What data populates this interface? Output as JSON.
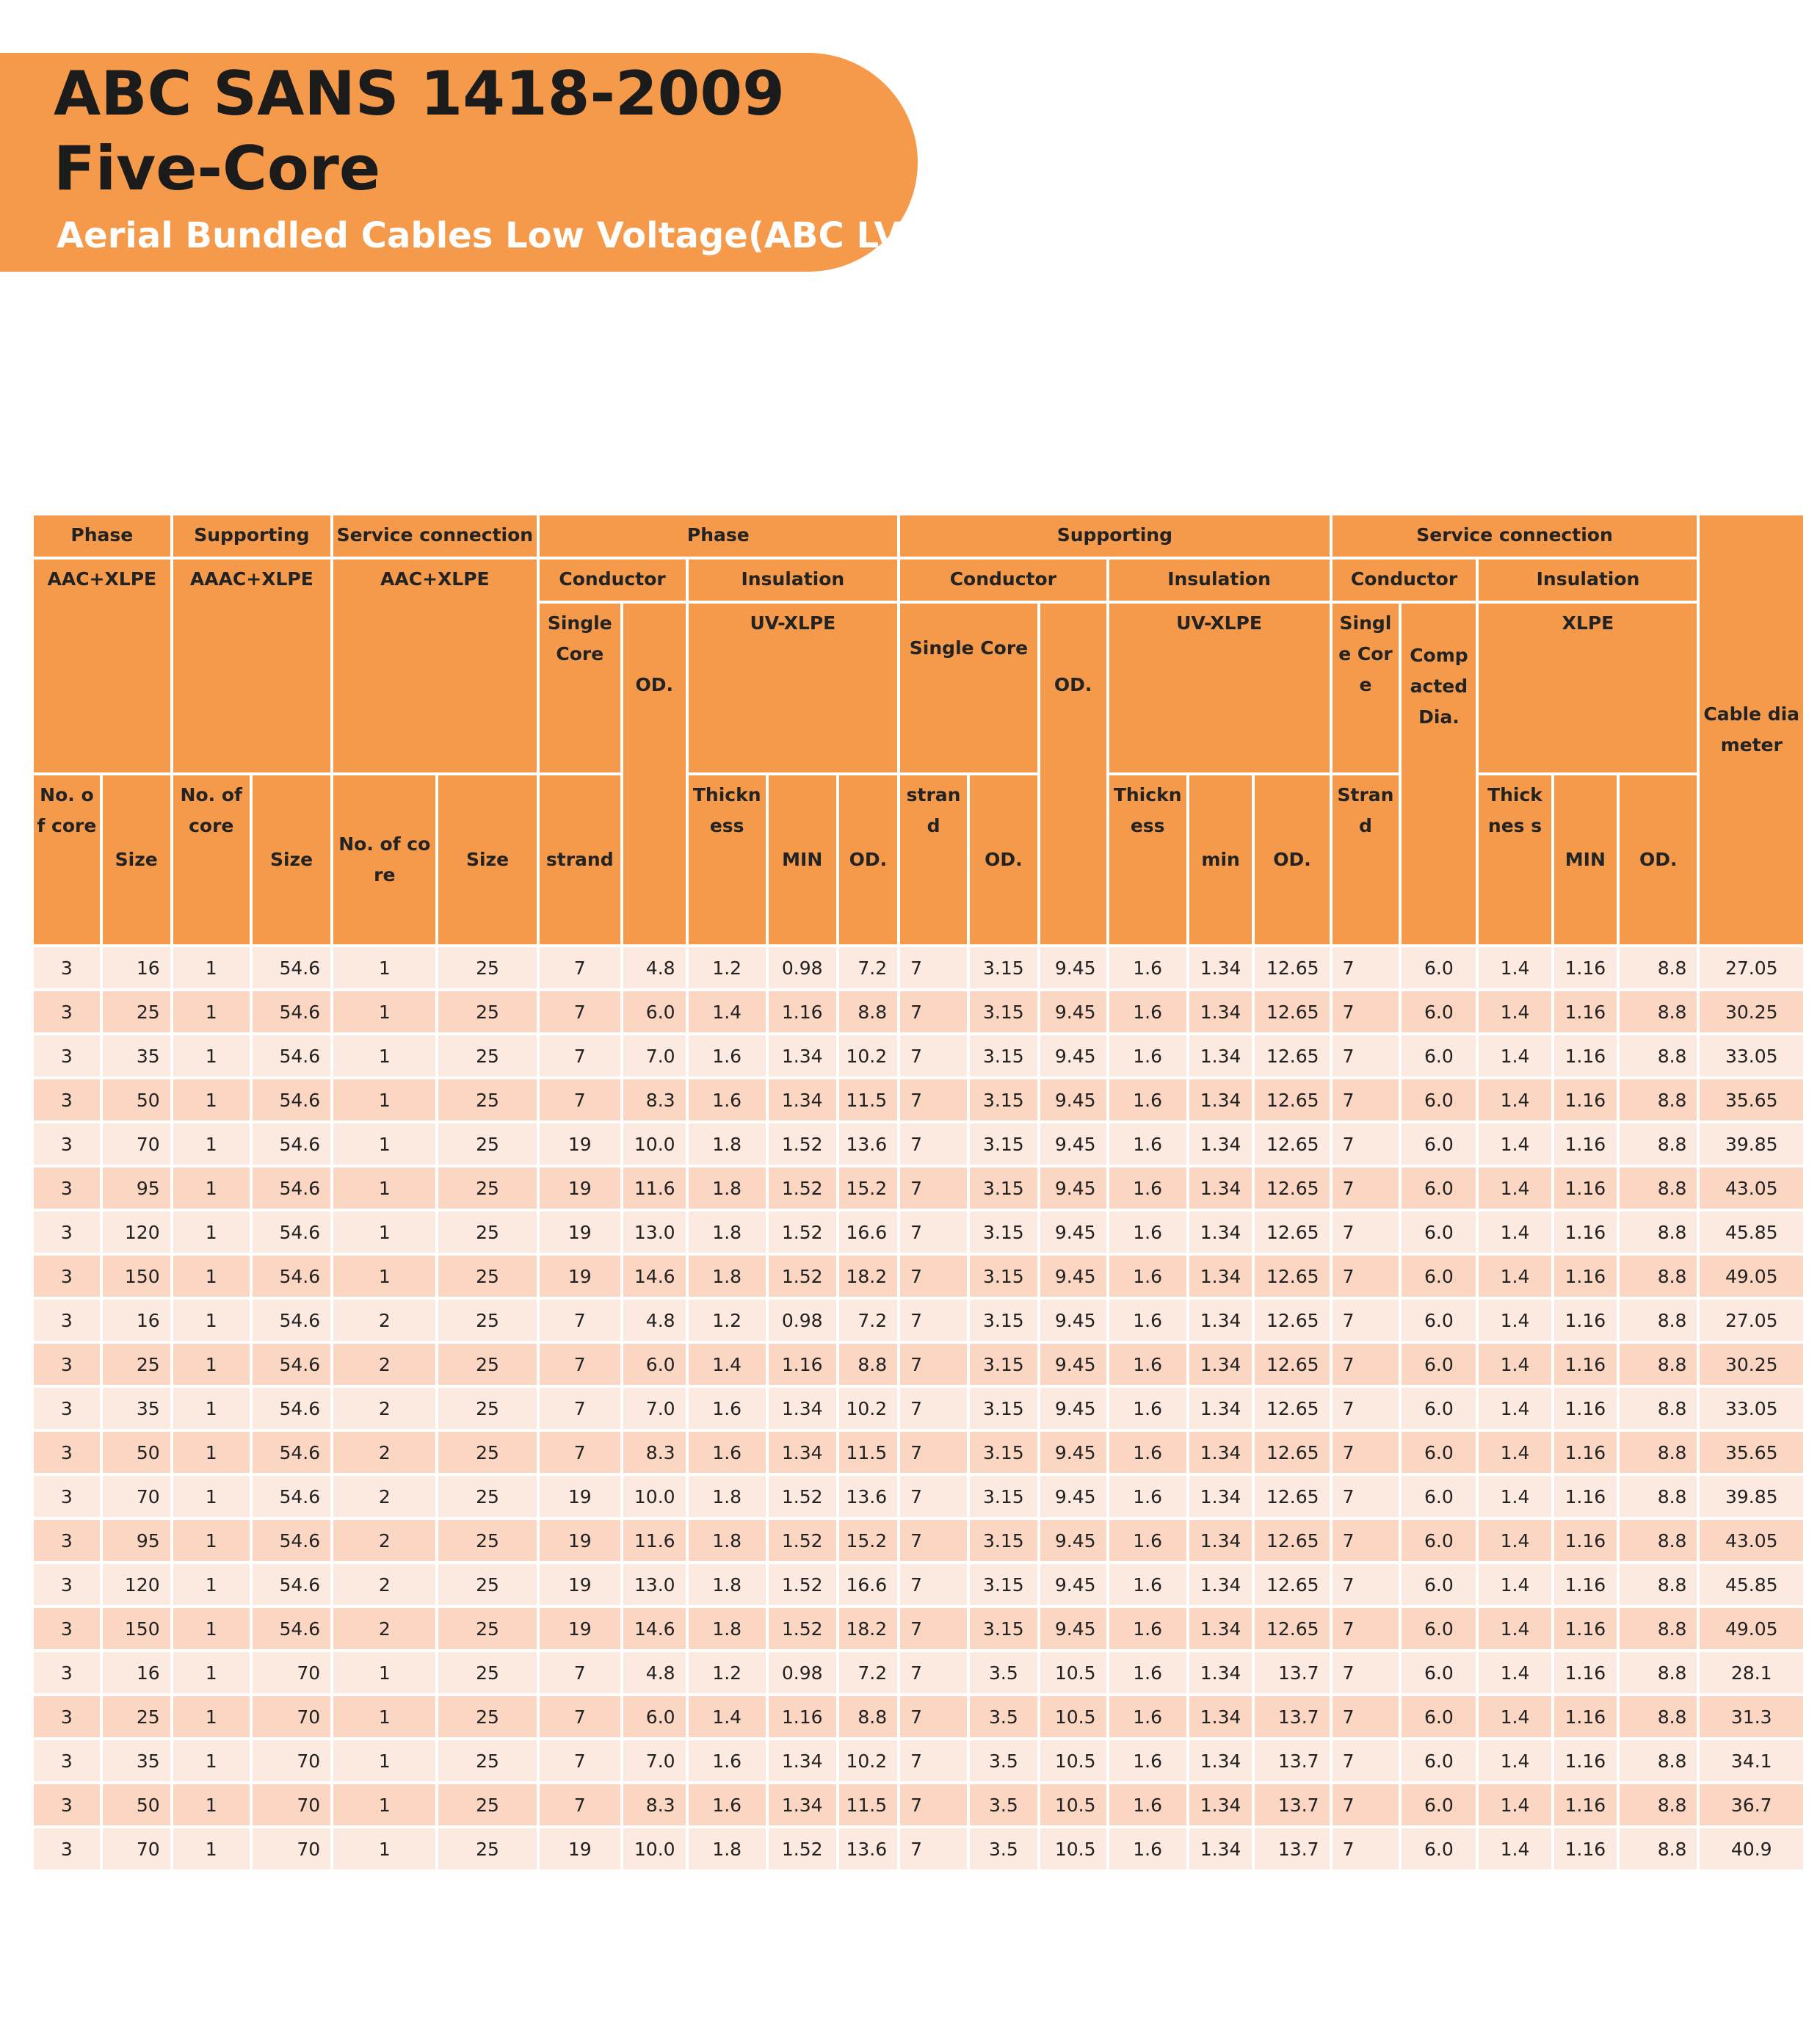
{
  "header": {
    "title_line1": "ABC SANS 1418-2009",
    "title_line2": "Five-Core",
    "subtitle": "Aerial Bundled Cables Low Voltage(ABC LV)"
  },
  "table": {
    "groups": {
      "phase": "Phase",
      "supporting": "Supporting",
      "service_connection": "Service connection",
      "phase2": "Phase",
      "supporting2": "Supporting",
      "service_connection2": "Service connection"
    },
    "sub": {
      "aac_xlpe": "AAC+XLPE",
      "aaac_xlpe": "AAAC+XLPE",
      "aac_xlpe2": "AAC+XLPE",
      "conductor": "Conductor",
      "insulation": "Insulation",
      "conductor2": "Conductor",
      "insulation2": "Insulation",
      "conductor3": "Conductor",
      "insulation3": "Insulation",
      "single_core": "Single Core",
      "od": "OD.",
      "uv_xlpe": "UV-XLPE",
      "single_core2": "Single Core",
      "od2": "OD.",
      "uv_xlpe2": "UV-XLPE",
      "single_core3": "Single Core",
      "compacted_dia": "Compacted Dia.",
      "xlpe": "XLPE",
      "cable_diameter": "Cable diameter"
    },
    "leaf": {
      "no_of_core": "No. of core",
      "size": "Size",
      "no_of_core2": "No. of core",
      "size2": "Size",
      "no_of_core3": "No. of core",
      "size3": "Size",
      "strand": "strand",
      "thickness": "Thickness",
      "min": "MIN",
      "od": "OD.",
      "strand2": "strand",
      "od2": "OD.",
      "thickness2": "Thickness",
      "min2": "min",
      "od3": "OD.",
      "strand3": "Strand",
      "thickness3": "Thicknes s",
      "min3": "MIN",
      "od4": "OD."
    },
    "rows": [
      [
        "3",
        "16",
        "1",
        "54.6",
        "1",
        "25",
        "7",
        "4.8",
        "1.2",
        "0.98",
        "7.2",
        "7",
        "3.15",
        "9.45",
        "1.6",
        "1.34",
        "12.65",
        "7",
        "6.0",
        "1.4",
        "1.16",
        "8.8",
        "27.05"
      ],
      [
        "3",
        "25",
        "1",
        "54.6",
        "1",
        "25",
        "7",
        "6.0",
        "1.4",
        "1.16",
        "8.8",
        "7",
        "3.15",
        "9.45",
        "1.6",
        "1.34",
        "12.65",
        "7",
        "6.0",
        "1.4",
        "1.16",
        "8.8",
        "30.25"
      ],
      [
        "3",
        "35",
        "1",
        "54.6",
        "1",
        "25",
        "7",
        "7.0",
        "1.6",
        "1.34",
        "10.2",
        "7",
        "3.15",
        "9.45",
        "1.6",
        "1.34",
        "12.65",
        "7",
        "6.0",
        "1.4",
        "1.16",
        "8.8",
        "33.05"
      ],
      [
        "3",
        "50",
        "1",
        "54.6",
        "1",
        "25",
        "7",
        "8.3",
        "1.6",
        "1.34",
        "11.5",
        "7",
        "3.15",
        "9.45",
        "1.6",
        "1.34",
        "12.65",
        "7",
        "6.0",
        "1.4",
        "1.16",
        "8.8",
        "35.65"
      ],
      [
        "3",
        "70",
        "1",
        "54.6",
        "1",
        "25",
        "19",
        "10.0",
        "1.8",
        "1.52",
        "13.6",
        "7",
        "3.15",
        "9.45",
        "1.6",
        "1.34",
        "12.65",
        "7",
        "6.0",
        "1.4",
        "1.16",
        "8.8",
        "39.85"
      ],
      [
        "3",
        "95",
        "1",
        "54.6",
        "1",
        "25",
        "19",
        "11.6",
        "1.8",
        "1.52",
        "15.2",
        "7",
        "3.15",
        "9.45",
        "1.6",
        "1.34",
        "12.65",
        "7",
        "6.0",
        "1.4",
        "1.16",
        "8.8",
        "43.05"
      ],
      [
        "3",
        "120",
        "1",
        "54.6",
        "1",
        "25",
        "19",
        "13.0",
        "1.8",
        "1.52",
        "16.6",
        "7",
        "3.15",
        "9.45",
        "1.6",
        "1.34",
        "12.65",
        "7",
        "6.0",
        "1.4",
        "1.16",
        "8.8",
        "45.85"
      ],
      [
        "3",
        "150",
        "1",
        "54.6",
        "1",
        "25",
        "19",
        "14.6",
        "1.8",
        "1.52",
        "18.2",
        "7",
        "3.15",
        "9.45",
        "1.6",
        "1.34",
        "12.65",
        "7",
        "6.0",
        "1.4",
        "1.16",
        "8.8",
        "49.05"
      ],
      [
        "3",
        "16",
        "1",
        "54.6",
        "2",
        "25",
        "7",
        "4.8",
        "1.2",
        "0.98",
        "7.2",
        "7",
        "3.15",
        "9.45",
        "1.6",
        "1.34",
        "12.65",
        "7",
        "6.0",
        "1.4",
        "1.16",
        "8.8",
        "27.05"
      ],
      [
        "3",
        "25",
        "1",
        "54.6",
        "2",
        "25",
        "7",
        "6.0",
        "1.4",
        "1.16",
        "8.8",
        "7",
        "3.15",
        "9.45",
        "1.6",
        "1.34",
        "12.65",
        "7",
        "6.0",
        "1.4",
        "1.16",
        "8.8",
        "30.25"
      ],
      [
        "3",
        "35",
        "1",
        "54.6",
        "2",
        "25",
        "7",
        "7.0",
        "1.6",
        "1.34",
        "10.2",
        "7",
        "3.15",
        "9.45",
        "1.6",
        "1.34",
        "12.65",
        "7",
        "6.0",
        "1.4",
        "1.16",
        "8.8",
        "33.05"
      ],
      [
        "3",
        "50",
        "1",
        "54.6",
        "2",
        "25",
        "7",
        "8.3",
        "1.6",
        "1.34",
        "11.5",
        "7",
        "3.15",
        "9.45",
        "1.6",
        "1.34",
        "12.65",
        "7",
        "6.0",
        "1.4",
        "1.16",
        "8.8",
        "35.65"
      ],
      [
        "3",
        "70",
        "1",
        "54.6",
        "2",
        "25",
        "19",
        "10.0",
        "1.8",
        "1.52",
        "13.6",
        "7",
        "3.15",
        "9.45",
        "1.6",
        "1.34",
        "12.65",
        "7",
        "6.0",
        "1.4",
        "1.16",
        "8.8",
        "39.85"
      ],
      [
        "3",
        "95",
        "1",
        "54.6",
        "2",
        "25",
        "19",
        "11.6",
        "1.8",
        "1.52",
        "15.2",
        "7",
        "3.15",
        "9.45",
        "1.6",
        "1.34",
        "12.65",
        "7",
        "6.0",
        "1.4",
        "1.16",
        "8.8",
        "43.05"
      ],
      [
        "3",
        "120",
        "1",
        "54.6",
        "2",
        "25",
        "19",
        "13.0",
        "1.8",
        "1.52",
        "16.6",
        "7",
        "3.15",
        "9.45",
        "1.6",
        "1.34",
        "12.65",
        "7",
        "6.0",
        "1.4",
        "1.16",
        "8.8",
        "45.85"
      ],
      [
        "3",
        "150",
        "1",
        "54.6",
        "2",
        "25",
        "19",
        "14.6",
        "1.8",
        "1.52",
        "18.2",
        "7",
        "3.15",
        "9.45",
        "1.6",
        "1.34",
        "12.65",
        "7",
        "6.0",
        "1.4",
        "1.16",
        "8.8",
        "49.05"
      ],
      [
        "3",
        "16",
        "1",
        "70",
        "1",
        "25",
        "7",
        "4.8",
        "1.2",
        "0.98",
        "7.2",
        "7",
        "3.5",
        "10.5",
        "1.6",
        "1.34",
        "13.7",
        "7",
        "6.0",
        "1.4",
        "1.16",
        "8.8",
        "28.1"
      ],
      [
        "3",
        "25",
        "1",
        "70",
        "1",
        "25",
        "7",
        "6.0",
        "1.4",
        "1.16",
        "8.8",
        "7",
        "3.5",
        "10.5",
        "1.6",
        "1.34",
        "13.7",
        "7",
        "6.0",
        "1.4",
        "1.16",
        "8.8",
        "31.3"
      ],
      [
        "3",
        "35",
        "1",
        "70",
        "1",
        "25",
        "7",
        "7.0",
        "1.6",
        "1.34",
        "10.2",
        "7",
        "3.5",
        "10.5",
        "1.6",
        "1.34",
        "13.7",
        "7",
        "6.0",
        "1.4",
        "1.16",
        "8.8",
        "34.1"
      ],
      [
        "3",
        "50",
        "1",
        "70",
        "1",
        "25",
        "7",
        "8.3",
        "1.6",
        "1.34",
        "11.5",
        "7",
        "3.5",
        "10.5",
        "1.6",
        "1.34",
        "13.7",
        "7",
        "6.0",
        "1.4",
        "1.16",
        "8.8",
        "36.7"
      ],
      [
        "3",
        "70",
        "1",
        "70",
        "1",
        "25",
        "19",
        "10.0",
        "1.8",
        "1.52",
        "13.6",
        "7",
        "3.5",
        "10.5",
        "1.6",
        "1.34",
        "13.7",
        "7",
        "6.0",
        "1.4",
        "1.16",
        "8.8",
        "40.9"
      ]
    ]
  }
}
